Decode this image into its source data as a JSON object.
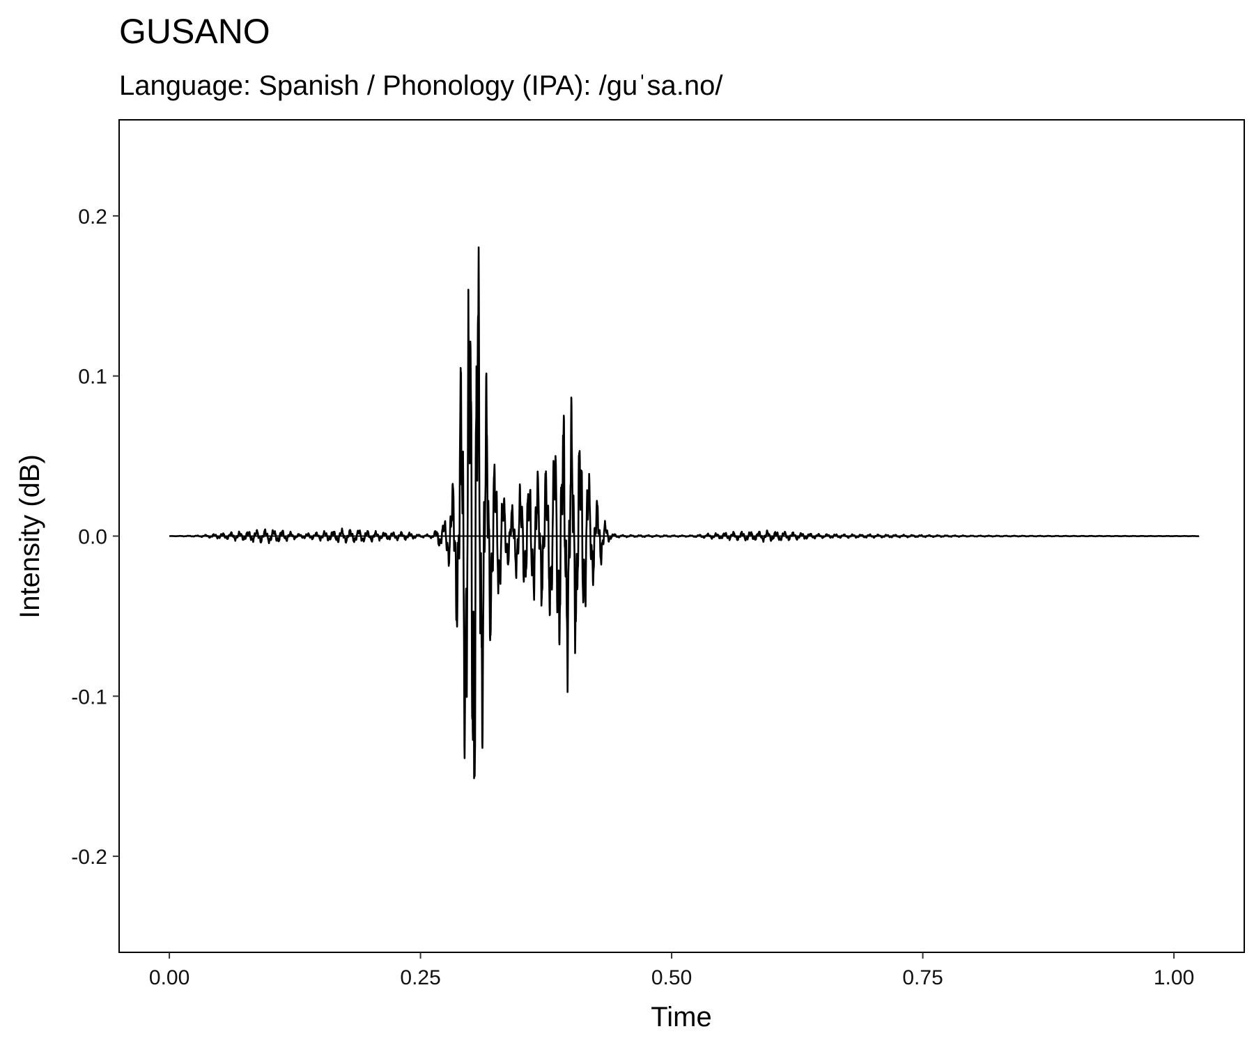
{
  "chart_data": {
    "type": "line",
    "title": "GUSANO",
    "subtitle": "Language: Spanish / Phonology (IPA): /guˈsa.no/",
    "xlabel": "Time",
    "ylabel": "Intensity (dB)",
    "xlim": [
      -0.05,
      1.07
    ],
    "ylim": [
      -0.26,
      0.26
    ],
    "x_ticks": [
      {
        "value": 0.0,
        "label": "0.00"
      },
      {
        "value": 0.25,
        "label": "0.25"
      },
      {
        "value": 0.5,
        "label": "0.50"
      },
      {
        "value": 0.75,
        "label": "0.75"
      },
      {
        "value": 1.0,
        "label": "1.00"
      }
    ],
    "y_ticks": [
      {
        "value": 0.2,
        "label": "0.2"
      },
      {
        "value": 0.1,
        "label": "0.1"
      },
      {
        "value": 0.0,
        "label": "0.0"
      },
      {
        "value": -0.1,
        "label": "-0.1"
      },
      {
        "value": -0.2,
        "label": "-0.2"
      }
    ],
    "grid": false,
    "series": [
      {
        "color": "#000000",
        "duration": 1.025,
        "envelope": [
          [
            0.0,
            0.0
          ],
          [
            0.03,
            0.0005
          ],
          [
            0.05,
            0.002
          ],
          [
            0.08,
            0.004
          ],
          [
            0.09,
            0.005
          ],
          [
            0.11,
            0.005
          ],
          [
            0.12,
            0.003
          ],
          [
            0.13,
            0.0015
          ],
          [
            0.15,
            0.003
          ],
          [
            0.17,
            0.005
          ],
          [
            0.19,
            0.005
          ],
          [
            0.21,
            0.003
          ],
          [
            0.235,
            0.003
          ],
          [
            0.25,
            0.001
          ],
          [
            0.262,
            0.0015
          ],
          [
            0.268,
            0.008
          ],
          [
            0.272,
            0.01
          ],
          [
            0.276,
            0.015
          ],
          [
            0.28,
            0.03
          ],
          [
            0.286,
            0.07
          ],
          [
            0.292,
            0.15
          ],
          [
            0.298,
            0.2
          ],
          [
            0.302,
            0.236
          ],
          [
            0.306,
            0.242
          ],
          [
            0.31,
            0.175
          ],
          [
            0.315,
            0.12
          ],
          [
            0.32,
            0.08
          ],
          [
            0.325,
            0.055
          ],
          [
            0.33,
            0.04
          ],
          [
            0.335,
            0.025
          ],
          [
            0.34,
            0.02
          ],
          [
            0.346,
            0.032
          ],
          [
            0.352,
            0.04
          ],
          [
            0.358,
            0.045
          ],
          [
            0.365,
            0.048
          ],
          [
            0.372,
            0.05
          ],
          [
            0.378,
            0.06
          ],
          [
            0.385,
            0.077
          ],
          [
            0.39,
            0.09
          ],
          [
            0.397,
            0.103
          ],
          [
            0.403,
            0.085
          ],
          [
            0.41,
            0.08
          ],
          [
            0.415,
            0.055
          ],
          [
            0.42,
            0.04
          ],
          [
            0.425,
            0.03
          ],
          [
            0.43,
            0.02
          ],
          [
            0.435,
            0.008
          ],
          [
            0.44,
            0.002
          ],
          [
            0.45,
            0.0008
          ],
          [
            0.52,
            0.0005
          ],
          [
            0.54,
            0.002
          ],
          [
            0.56,
            0.003
          ],
          [
            0.6,
            0.004
          ],
          [
            0.62,
            0.003
          ],
          [
            0.65,
            0.0015
          ],
          [
            0.7,
            0.0012
          ],
          [
            0.75,
            0.0008
          ],
          [
            0.8,
            0.0004
          ],
          [
            0.9,
            0.0002
          ],
          [
            1.025,
            0.0001
          ]
        ]
      }
    ]
  }
}
